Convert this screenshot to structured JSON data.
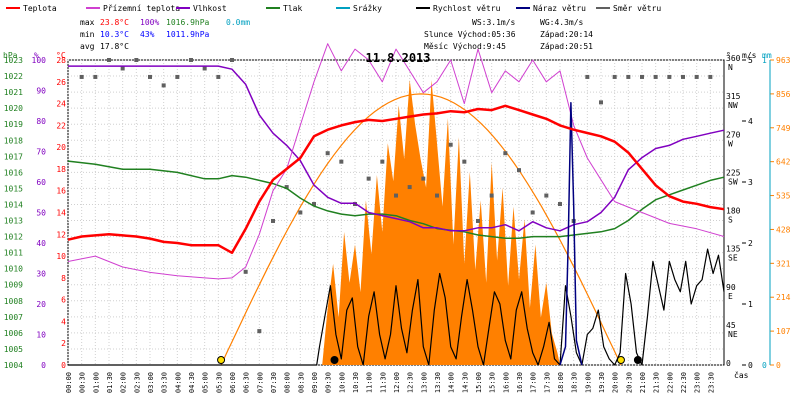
{
  "chart_data": {
    "type": "line",
    "title": "11.8.2013",
    "legend": [
      {
        "label": "Teplota",
        "color": "#ff0000"
      },
      {
        "label": "Přízemní teplota",
        "color": "#d040d0"
      },
      {
        "label": "Vlhkost",
        "color": "#8000c0"
      },
      {
        "label": "Tlak",
        "color": "#208020"
      },
      {
        "label": "Srážky",
        "color": "#00a0c0"
      },
      {
        "label": "Rychlost větru",
        "color": "#000000"
      },
      {
        "label": "Náraz větru",
        "color": "#000080"
      },
      {
        "label": "Směr větru",
        "color": "#606060"
      }
    ],
    "stats": {
      "max_label": "max",
      "max_temp": "23.8°C",
      "max_hum": "100%",
      "max_press": "1016.9hPa",
      "max_rain": "0.0mm",
      "min_label": "min",
      "min_temp": "10.3°C",
      "min_hum": "43%",
      "min_press": "1011.9hPa",
      "avg_label": "avg",
      "avg_temp": "17.8°C"
    },
    "info": {
      "ws": "WS:3.1m/s",
      "wg": "WG:4.3m/s",
      "sun": "Slunce Východ:05:36",
      "sunset": "Západ:20:14",
      "moon": "Měsíc  Východ:9:45",
      "moonset": "Západ:20:51"
    },
    "colors": {
      "temp": "#ff0000",
      "ground": "#d040d0",
      "hum": "#8000c0",
      "press": "#208020",
      "rain": "#00a0c0",
      "wind": "#000000",
      "gust": "#000080",
      "dir": "#606060",
      "solar": "#ff8000",
      "sunarc": "#ff8000",
      "grid": "#d0d0d0"
    },
    "axes": {
      "hpa_unit": "hPa",
      "pct_unit": "%",
      "c_unit": "°C",
      "hpa_ticks": [
        "1023",
        "1022",
        "1021",
        "1020",
        "1019",
        "1018",
        "1017",
        "1016",
        "1015",
        "1014",
        "1013",
        "1012",
        "1011",
        "1010",
        "1009",
        "1008",
        "1007",
        "1006",
        "1005",
        "1004"
      ],
      "pct_ticks": [
        "100",
        "90",
        "80",
        "70",
        "60",
        "50",
        "40",
        "30",
        "20",
        "10",
        "0"
      ],
      "c_ticks": [
        "28",
        "26",
        "24",
        "22",
        "20",
        "18",
        "16",
        "14",
        "12",
        "10",
        "8",
        "6",
        "4",
        "2",
        "0"
      ],
      "deg_unit": "°",
      "deg_ticks": [
        "360",
        "315",
        "270",
        "225",
        "180",
        "135",
        "90",
        "45",
        "0"
      ],
      "dir_labels": [
        "N",
        "NW",
        "W",
        "SW",
        "S",
        "SE",
        "E",
        "NE",
        ""
      ],
      "ms_unit": "m/s",
      "ms_ticks": [
        "5",
        "4",
        "3",
        "2",
        "1",
        "0"
      ],
      "mm_unit": "mm",
      "mm_ticks": [
        "1",
        "0"
      ],
      "wm2_ticks": [
        "963",
        "856",
        "749",
        "642",
        "535",
        "428",
        "321",
        "214",
        "107",
        "0"
      ],
      "time_unit": "čas",
      "time_ticks": [
        "00:00",
        "00:30",
        "01:00",
        "01:30",
        "02:00",
        "02:30",
        "03:00",
        "03:30",
        "04:00",
        "04:30",
        "05:00",
        "05:30",
        "06:00",
        "06:30",
        "07:00",
        "07:30",
        "08:00",
        "08:30",
        "09:00",
        "09:30",
        "10:00",
        "10:30",
        "11:00",
        "11:30",
        "12:00",
        "12:30",
        "13:00",
        "13:30",
        "14:00",
        "14:30",
        "15:00",
        "15:30",
        "16:00",
        "16:30",
        "17:00",
        "17:30",
        "18:00",
        "18:30",
        "19:00",
        "19:30",
        "20:00",
        "20:30",
        "21:00",
        "21:30",
        "22:00",
        "22:30",
        "23:00",
        "23:30"
      ]
    },
    "x_unit": "hours",
    "x_range": [
      0,
      24
    ],
    "series": [
      {
        "name": "Teplota",
        "unit": "°C",
        "range": [
          0,
          28
        ],
        "x": [
          0,
          0.5,
          1,
          1.5,
          2,
          2.5,
          3,
          3.5,
          4,
          4.5,
          5,
          5.5,
          6,
          6.5,
          7,
          7.5,
          8,
          8.5,
          9,
          9.5,
          10,
          10.5,
          11,
          11.5,
          12,
          12.5,
          13,
          13.5,
          14,
          14.5,
          15,
          15.5,
          16,
          16.5,
          17,
          17.5,
          18,
          18.5,
          19,
          19.5,
          20,
          20.5,
          21,
          21.5,
          22,
          22.5,
          23,
          23.5,
          24
        ],
        "y": [
          11.5,
          11.8,
          11.9,
          12.0,
          11.9,
          11.8,
          11.6,
          11.3,
          11.2,
          11.0,
          11.0,
          11.0,
          10.3,
          12.5,
          15,
          17,
          18,
          19,
          21,
          21.6,
          22,
          22.3,
          22.5,
          22.4,
          22.6,
          22.8,
          23.0,
          23.1,
          23.3,
          23.2,
          23.5,
          23.4,
          23.8,
          23.4,
          23.0,
          22.6,
          22.0,
          21.6,
          21.3,
          21.0,
          20.5,
          19.5,
          18.0,
          16.5,
          15.5,
          15.0,
          14.8,
          14.5,
          14.3
        ]
      },
      {
        "name": "Přízemní teplota",
        "unit": "°C",
        "range": [
          0,
          28
        ],
        "x": [
          0,
          1,
          2,
          3,
          4,
          5,
          5.5,
          6,
          6.5,
          7,
          7.5,
          8,
          8.5,
          9,
          9.5,
          10,
          10.5,
          11,
          11.5,
          12,
          12.5,
          13,
          13.5,
          14,
          14.5,
          15,
          15.5,
          16,
          16.5,
          17,
          17.5,
          18,
          18.5,
          19,
          19.5,
          20,
          20.5,
          21,
          22,
          23,
          24
        ],
        "y": [
          9.5,
          10,
          9,
          8.5,
          8.2,
          8.0,
          7.9,
          8.0,
          9,
          12,
          16,
          18,
          22,
          26,
          29.5,
          27,
          29,
          28,
          26,
          29,
          27,
          25,
          26,
          28,
          24,
          29,
          25,
          27,
          26,
          28,
          26,
          27,
          22,
          19,
          17,
          15,
          14.5,
          14,
          13,
          12.5,
          11.8
        ]
      },
      {
        "name": "Vlhkost",
        "unit": "%",
        "range": [
          0,
          100
        ],
        "x": [
          0,
          1,
          2,
          3,
          4,
          5,
          5.5,
          6,
          6.5,
          7,
          7.5,
          8,
          8.5,
          9,
          9.5,
          10,
          10.5,
          11,
          11.5,
          12,
          12.5,
          13,
          13.5,
          14,
          14.5,
          15,
          15.5,
          16,
          16.5,
          17,
          17.5,
          18,
          18.5,
          19,
          19.5,
          20,
          20.5,
          21,
          21.5,
          22,
          22.5,
          23,
          23.5,
          24
        ],
        "y": [
          98,
          98,
          98,
          98,
          98,
          98,
          98,
          97,
          92,
          82,
          76,
          72,
          67,
          59,
          55,
          53,
          53,
          50,
          49,
          48,
          47,
          45,
          45,
          44,
          44,
          45,
          45,
          46,
          44,
          47,
          45,
          44,
          46,
          47,
          50,
          55,
          64,
          68,
          71,
          72,
          74,
          75,
          76,
          77
        ]
      },
      {
        "name": "Tlak",
        "unit": "hPa",
        "range": [
          1004,
          1023
        ],
        "x": [
          0,
          1,
          2,
          3,
          4,
          5,
          5.5,
          6,
          6.5,
          7,
          7.5,
          8,
          8.5,
          9,
          9.5,
          10,
          10.5,
          11,
          11.5,
          12,
          12.5,
          13,
          13.5,
          14,
          14.5,
          15,
          15.5,
          16,
          16.5,
          17,
          17.5,
          18,
          18.5,
          19,
          19.5,
          20,
          20.5,
          21,
          21.5,
          22,
          22.5,
          23,
          23.5,
          24
        ],
        "y": [
          1016.7,
          1016.5,
          1016.2,
          1016.2,
          1016.0,
          1015.6,
          1015.6,
          1015.8,
          1015.7,
          1015.5,
          1015.3,
          1015.0,
          1014.4,
          1013.9,
          1013.6,
          1013.4,
          1013.3,
          1013.4,
          1013.4,
          1013.3,
          1013.0,
          1012.8,
          1012.5,
          1012.4,
          1012.3,
          1012.1,
          1012.0,
          1011.9,
          1011.9,
          1012.0,
          1012.0,
          1012.0,
          1012.1,
          1012.2,
          1012.3,
          1012.5,
          1013.0,
          1013.7,
          1014.3,
          1014.6,
          1014.9,
          1015.2,
          1015.5,
          1015.7
        ]
      },
      {
        "name": "Rychlost větru",
        "unit": "m/s",
        "range": [
          0,
          5
        ],
        "x": [
          0,
          9.1,
          9.2,
          9.4,
          9.6,
          9.8,
          10.0,
          10.2,
          10.4,
          10.6,
          10.8,
          11.0,
          11.2,
          11.4,
          11.6,
          11.8,
          12.0,
          12.2,
          12.4,
          12.6,
          12.8,
          13.0,
          13.2,
          13.4,
          13.6,
          13.8,
          14.0,
          14.2,
          14.4,
          14.6,
          14.8,
          15.0,
          15.2,
          15.4,
          15.6,
          15.8,
          16.0,
          16.2,
          16.4,
          16.6,
          16.8,
          17.0,
          17.2,
          17.4,
          17.6,
          17.8,
          18.0,
          18.2,
          18.4,
          18.6,
          18.8,
          19.0,
          19.2,
          19.4,
          19.6,
          19.8,
          20.0,
          20.2,
          20.4,
          20.6,
          20.8,
          21.0,
          21.2,
          21.4,
          21.6,
          21.8,
          22.0,
          22.2,
          22.4,
          22.6,
          22.8,
          23.0,
          23.2,
          23.4,
          23.6,
          23.8,
          24.0
        ],
        "y": [
          0,
          0,
          0.3,
          0.8,
          1.3,
          0.5,
          0.1,
          0.9,
          1.1,
          0.3,
          0.0,
          0.8,
          1.2,
          0.5,
          0.1,
          0.5,
          1.3,
          0.6,
          0.2,
          0.9,
          1.4,
          0.3,
          0.0,
          0.9,
          1.5,
          1.1,
          0.3,
          0.1,
          0.8,
          1.4,
          0.9,
          0.3,
          0.0,
          0.6,
          1.2,
          1.0,
          0.4,
          0.1,
          0.9,
          1.2,
          0.6,
          0.2,
          0.0,
          0.3,
          0.7,
          0.1,
          0.0,
          1.3,
          0.8,
          0.2,
          0.0,
          0.5,
          0.6,
          0.9,
          0.3,
          0.1,
          0.0,
          0.2,
          1.5,
          1.0,
          0.2,
          0.0,
          0.8,
          1.7,
          1.3,
          0.9,
          1.7,
          1.4,
          1.2,
          1.7,
          1.0,
          1.3,
          1.4,
          1.9,
          1.5,
          1.8,
          1.2
        ]
      },
      {
        "name": "Náraz větru",
        "unit": "m/s",
        "range": [
          0,
          5
        ],
        "x": [
          18,
          18.2,
          18.3,
          18.4,
          18.5,
          18.6,
          18.8
        ],
        "y": [
          0,
          0.3,
          2.0,
          4.3,
          2.6,
          0.4,
          0
        ]
      },
      {
        "name": "Sluneční záření",
        "unit": "W/m2",
        "range": [
          0,
          963
        ],
        "type": "area",
        "x": [
          9.3,
          9.5,
          9.7,
          9.9,
          10.1,
          10.3,
          10.5,
          10.7,
          10.9,
          11.1,
          11.3,
          11.5,
          11.7,
          11.9,
          12.1,
          12.3,
          12.5,
          12.7,
          12.9,
          13.1,
          13.3,
          13.5,
          13.7,
          13.9,
          14.1,
          14.3,
          14.5,
          14.7,
          14.9,
          15.1,
          15.3,
          15.5,
          15.7,
          15.9,
          16.1,
          16.3,
          16.5,
          16.7,
          16.9,
          17.1,
          17.3,
          17.5,
          17.7,
          17.9,
          18.0
        ],
        "y": [
          0,
          180,
          320,
          150,
          420,
          260,
          380,
          230,
          520,
          350,
          600,
          420,
          700,
          580,
          820,
          650,
          900,
          760,
          650,
          560,
          900,
          700,
          500,
          780,
          380,
          720,
          320,
          610,
          300,
          520,
          260,
          640,
          330,
          560,
          250,
          500,
          270,
          460,
          180,
          380,
          150,
          260,
          100,
          40,
          0
        ]
      }
    ],
    "sun_arc": {
      "rise_hour": 5.6,
      "set_hour": 20.23,
      "peak_hour": 12.9,
      "peak_wm2": 856
    },
    "direction_points": {
      "unit": "°",
      "range": [
        0,
        360
      ],
      "x": [
        0.5,
        1.0,
        1.5,
        2.0,
        2.5,
        3.0,
        3.5,
        4.0,
        4.5,
        5.0,
        5.5,
        6.0,
        6.5,
        7.0,
        7.5,
        8.0,
        8.5,
        9.0,
        9.5,
        10.0,
        10.5,
        11.0,
        11.5,
        12.0,
        12.5,
        13.0,
        13.5,
        14.0,
        14.5,
        15.0,
        15.5,
        16.0,
        16.5,
        17.0,
        17.5,
        18.0,
        18.5,
        19.0,
        19.5,
        20.0,
        20.5,
        21.0,
        21.5,
        22.0,
        22.5,
        23.0,
        23.5
      ],
      "y": [
        340,
        340,
        360,
        350,
        360,
        340,
        330,
        340,
        360,
        350,
        340,
        360,
        110,
        40,
        170,
        210,
        180,
        190,
        250,
        240,
        190,
        220,
        240,
        200,
        210,
        220,
        200,
        260,
        240,
        170,
        200,
        250,
        230,
        180,
        200,
        190,
        170,
        340,
        310,
        340,
        340,
        340,
        340,
        340,
        340,
        340,
        340
      ]
    },
    "markers": [
      {
        "kind": "sun",
        "hour": 5.6,
        "color": "#ffe000"
      },
      {
        "kind": "moon",
        "hour": 9.75,
        "color": "#000000"
      },
      {
        "kind": "sun",
        "hour": 20.23,
        "color": "#ffe000"
      },
      {
        "kind": "moon",
        "hour": 20.85,
        "color": "#000000"
      }
    ]
  }
}
